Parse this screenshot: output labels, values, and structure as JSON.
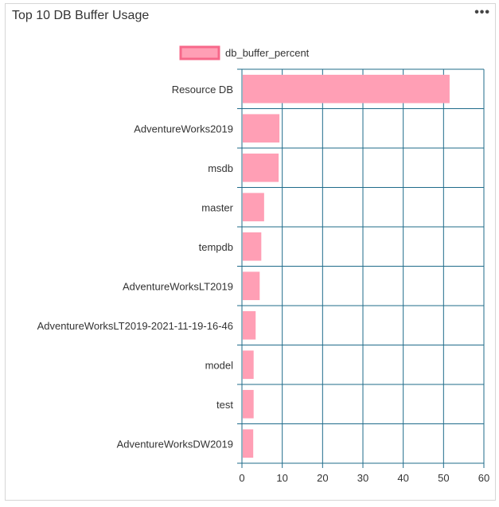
{
  "widget": {
    "title": "Top 10 DB Buffer Usage",
    "menu_icon": "more-horizontal-icon"
  },
  "chart_data": {
    "type": "bar",
    "orientation": "horizontal",
    "title": "Top 10 DB Buffer Usage",
    "legend": {
      "label": "db_buffer_percent",
      "position": "top"
    },
    "categories": [
      "Resource DB",
      "AdventureWorks2019",
      "msdb",
      "master",
      "tempdb",
      "AdventureWorksLT2019",
      "AdventureWorksLT2019-2021-11-19-16-46",
      "model",
      "test",
      "AdventureWorksDW2019"
    ],
    "series": [
      {
        "name": "db_buffer_percent",
        "values": [
          51.5,
          9.3,
          9.1,
          5.5,
          4.8,
          4.4,
          3.4,
          2.9,
          2.9,
          2.8
        ]
      }
    ],
    "xlim": [
      0,
      60
    ],
    "xticks": [
      0,
      10,
      20,
      30,
      40,
      50,
      60
    ],
    "grid": true,
    "colors": {
      "bar_fill": "#ff9fb5",
      "bar_stroke": "#f7688a",
      "grid": "#1f6b8a"
    }
  }
}
